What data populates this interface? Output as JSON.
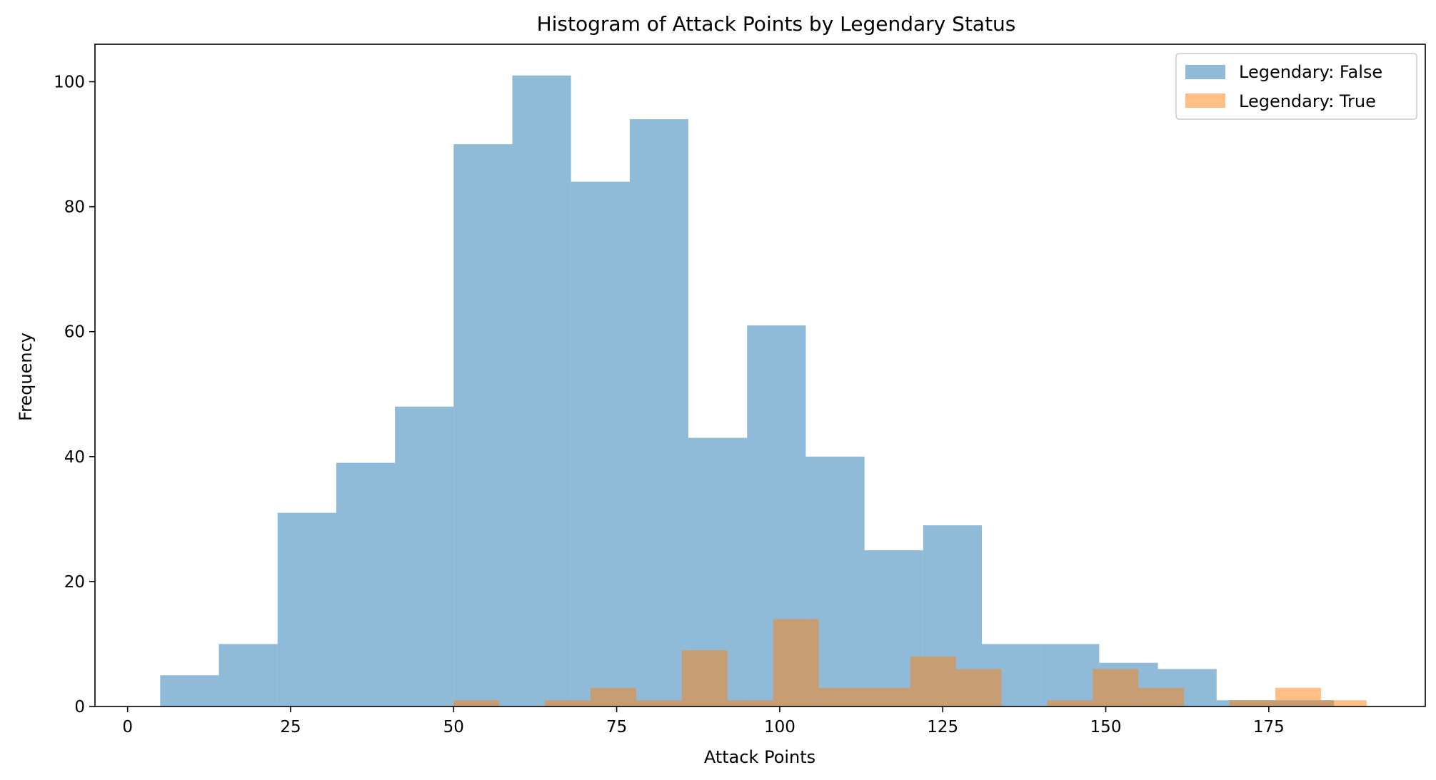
{
  "chart_data": {
    "type": "histogram",
    "title": "Histogram of Attack Points by Legendary Status",
    "xlabel": "Attack Points",
    "ylabel": "Frequency",
    "xlim": [
      -5,
      199
    ],
    "ylim": [
      0,
      106
    ],
    "x_ticks": [
      0,
      25,
      50,
      75,
      100,
      125,
      150,
      175
    ],
    "y_ticks": [
      0,
      20,
      40,
      60,
      80,
      100
    ],
    "legend_position": "top-right",
    "grid": false,
    "series": [
      {
        "name": "Legendary: False",
        "color": "#1f77b4",
        "opacity": 0.5,
        "bin_edges": [
          5,
          14,
          23,
          32,
          41,
          50,
          59,
          68,
          77,
          86,
          95,
          104,
          113,
          122,
          131,
          140,
          149,
          158,
          167,
          176,
          185
        ],
        "counts": [
          5,
          10,
          31,
          39,
          48,
          90,
          101,
          84,
          94,
          43,
          61,
          40,
          25,
          29,
          10,
          10,
          7,
          6,
          1,
          1
        ]
      },
      {
        "name": "Legendary: True",
        "color": "#ff7f0e",
        "opacity": 0.5,
        "bin_edges": [
          50,
          57,
          64,
          71,
          78,
          85,
          92,
          99,
          106,
          113,
          120,
          127,
          134,
          141,
          148,
          155,
          162,
          169,
          176,
          183,
          190
        ],
        "counts": [
          1,
          0,
          1,
          3,
          1,
          9,
          1,
          14,
          3,
          3,
          8,
          6,
          0,
          1,
          6,
          3,
          0,
          1,
          3,
          1
        ]
      }
    ]
  }
}
